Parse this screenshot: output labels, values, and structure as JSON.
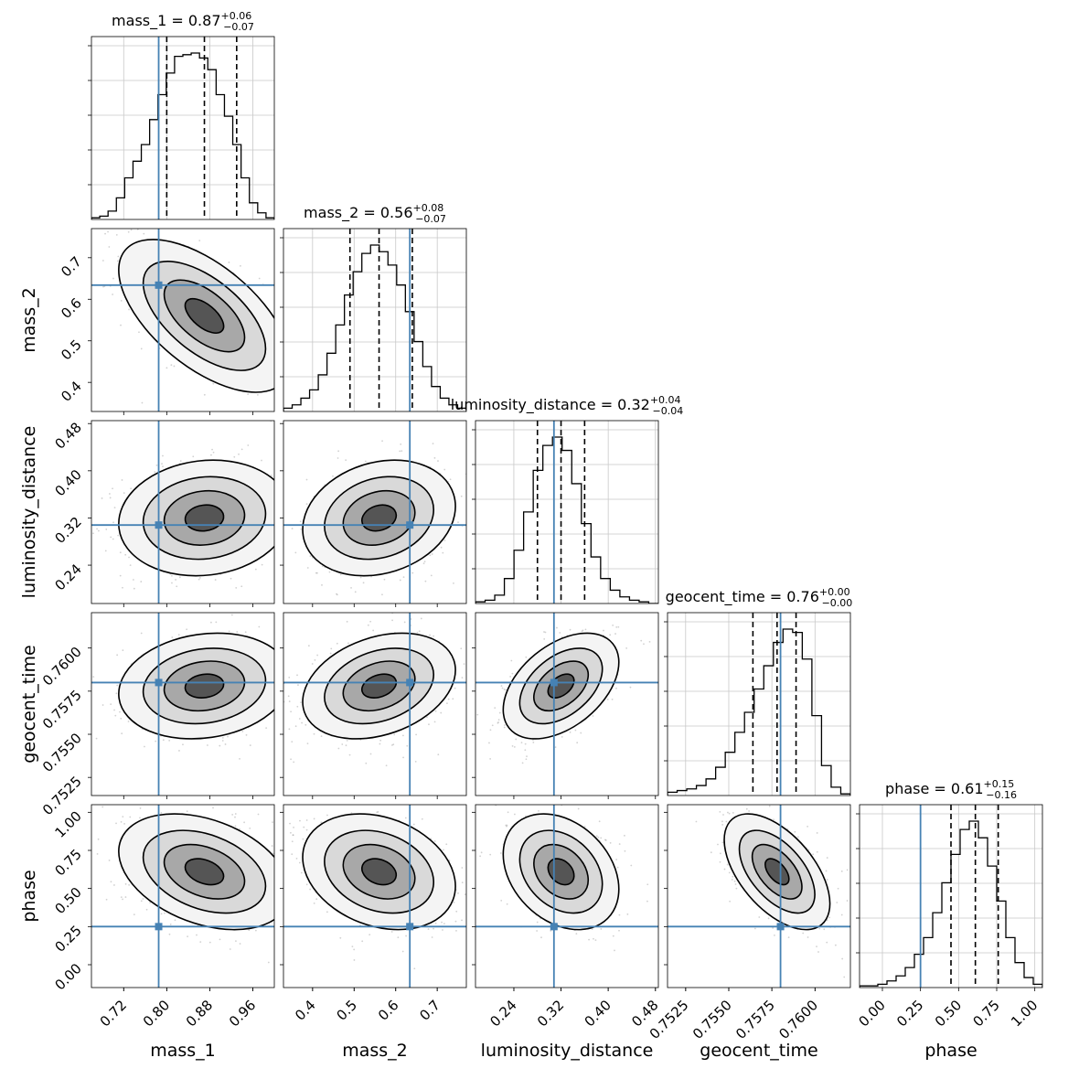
{
  "chart_data": {
    "type": "corner",
    "parameters": [
      "mass_1",
      "mass_2",
      "luminosity_distance",
      "geocent_time",
      "phase"
    ],
    "axis_labels": [
      "mass_1",
      "mass_2",
      "luminosity_distance",
      "geocent_time",
      "phase"
    ],
    "titles": [
      {
        "name": "mass_1",
        "median": "0.87",
        "plus": "+0.06",
        "minus": "−0.07"
      },
      {
        "name": "mass_2",
        "median": "0.56",
        "plus": "+0.08",
        "minus": "−0.07"
      },
      {
        "name": "luminosity_distance",
        "median": "0.32",
        "plus": "+0.04",
        "minus": "−0.04"
      },
      {
        "name": "geocent_time",
        "median": "0.76",
        "plus": "+0.00",
        "minus": "−0.00"
      },
      {
        "name": "phase",
        "median": "0.61",
        "plus": "+0.15",
        "minus": "−0.16"
      }
    ],
    "ranges": [
      [
        0.66,
        1.0
      ],
      [
        0.33,
        0.77
      ],
      [
        0.175,
        0.485
      ],
      [
        0.75145,
        0.76205
      ],
      [
        -0.15,
        1.05
      ]
    ],
    "ticks": [
      {
        "values": [
          0.72,
          0.8,
          0.88,
          0.96
        ],
        "labels": [
          "0.72",
          "0.80",
          "0.88",
          "0.96"
        ]
      },
      {
        "values": [
          0.4,
          0.5,
          0.6,
          0.7
        ],
        "labels": [
          "0.4",
          "0.5",
          "0.6",
          "0.7"
        ]
      },
      {
        "values": [
          0.24,
          0.32,
          0.4,
          0.48
        ],
        "labels": [
          "0.24",
          "0.32",
          "0.40",
          "0.48"
        ]
      },
      {
        "values": [
          0.7525,
          0.755,
          0.7575,
          0.76
        ],
        "labels": [
          "0.7525",
          "0.7550",
          "0.7575",
          "0.7600"
        ]
      },
      {
        "values": [
          0.0,
          0.25,
          0.5,
          0.75,
          1.0
        ],
        "labels": [
          "0.00",
          "0.25",
          "0.50",
          "0.75",
          "1.00"
        ]
      }
    ],
    "truths": [
      0.785,
      0.634,
      0.308,
      0.758,
      0.25
    ],
    "quantiles": [
      [
        0.8,
        0.87,
        0.93
      ],
      [
        0.49,
        0.56,
        0.64
      ],
      [
        0.28,
        0.32,
        0.36
      ],
      [
        0.7564,
        0.7578,
        0.7589
      ],
      [
        0.45,
        0.61,
        0.76
      ]
    ],
    "histograms": [
      [
        0.01,
        0.02,
        0.05,
        0.13,
        0.25,
        0.35,
        0.45,
        0.6,
        0.75,
        0.88,
        0.98,
        0.99,
        1.0,
        0.97,
        0.9,
        0.75,
        0.62,
        0.45,
        0.25,
        0.1,
        0.04,
        0.01
      ],
      [
        0.02,
        0.04,
        0.08,
        0.13,
        0.22,
        0.35,
        0.52,
        0.7,
        0.84,
        0.95,
        1.0,
        0.96,
        0.88,
        0.76,
        0.6,
        0.42,
        0.27,
        0.15,
        0.08,
        0.04,
        0.02
      ],
      [
        0.01,
        0.02,
        0.05,
        0.15,
        0.32,
        0.55,
        0.8,
        0.95,
        1.0,
        0.92,
        0.72,
        0.48,
        0.28,
        0.15,
        0.08,
        0.04,
        0.02,
        0.01,
        0.0
      ],
      [
        0.02,
        0.03,
        0.04,
        0.06,
        0.1,
        0.17,
        0.26,
        0.38,
        0.5,
        0.64,
        0.78,
        0.92,
        1.0,
        0.98,
        0.82,
        0.48,
        0.18,
        0.05,
        0.01
      ],
      [
        0.01,
        0.01,
        0.02,
        0.04,
        0.07,
        0.12,
        0.2,
        0.3,
        0.45,
        0.63,
        0.8,
        0.95,
        1.0,
        0.9,
        0.73,
        0.52,
        0.3,
        0.15,
        0.06,
        0.02
      ]
    ],
    "correlations": {
      "1,0": -0.6,
      "2,0": 0.1,
      "2,1": 0.2,
      "3,0": 0.15,
      "3,1": 0.3,
      "3,2": 0.45,
      "4,0": -0.35,
      "4,1": -0.25,
      "4,2": -0.3,
      "4,3": -0.55
    },
    "truth_color": "#4682b4",
    "grid": true
  }
}
